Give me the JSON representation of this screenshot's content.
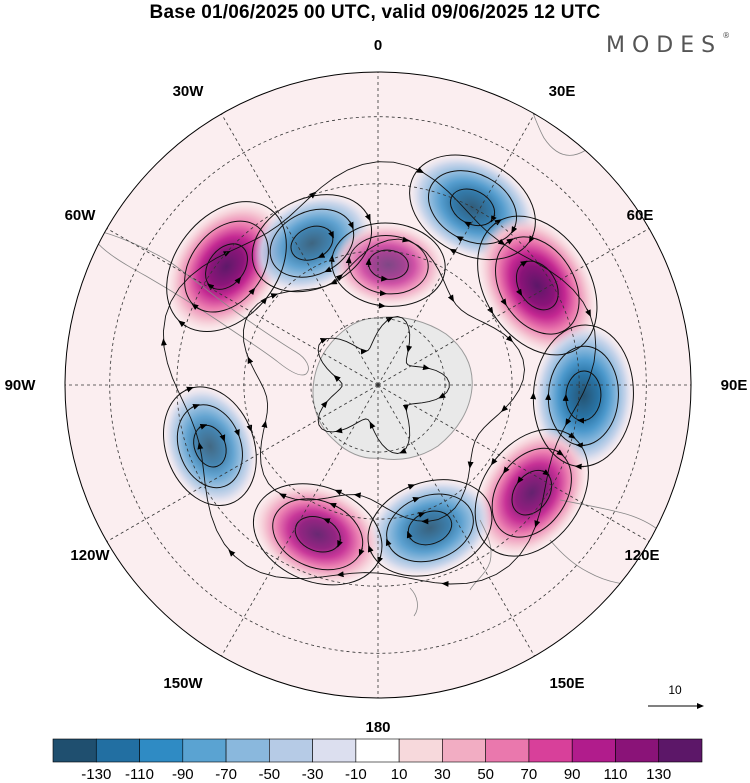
{
  "title": "Base 01/06/2025 00 UTC, valid 09/06/2025 12 UTC",
  "logo": "MODES",
  "logo_mark": "®",
  "longitude_labels": [
    "0",
    "30E",
    "60E",
    "90E",
    "120E",
    "150E",
    "180",
    "150W",
    "120W",
    "90W",
    "60W",
    "30W"
  ],
  "reference_vector_label": "10",
  "colorbar": {
    "labels": [
      "-130",
      "-110",
      "-90",
      "-70",
      "-50",
      "-30",
      "-10",
      "10",
      "30",
      "50",
      "70",
      "90",
      "110",
      "130"
    ],
    "colors": [
      "#1f4f6f",
      "#226fa2",
      "#2f8bc4",
      "#5aa3d2",
      "#8ab8dd",
      "#b6cbe6",
      "#dcdfef",
      "#ffffff",
      "#f7d9dc",
      "#f2adc3",
      "#ea78ad",
      "#d8409a",
      "#b11c8c",
      "#8a1378",
      "#5c1768"
    ]
  },
  "anomaly_centres": [
    {
      "lon": 28,
      "lat": -45,
      "value": -95
    },
    {
      "lon": 58,
      "lat": -48,
      "value": 125
    },
    {
      "lon": 93,
      "lat": -44,
      "value": -110
    },
    {
      "lon": 125,
      "lat": -48,
      "value": 105
    },
    {
      "lon": 160,
      "lat": -56,
      "value": -85
    },
    {
      "lon": -158,
      "lat": -54,
      "value": 95
    },
    {
      "lon": -110,
      "lat": -50,
      "value": -75
    },
    {
      "lon": -52,
      "lat": -47,
      "value": 115
    },
    {
      "lon": -25,
      "lat": -55,
      "value": -80
    },
    {
      "lon": 5,
      "lat": -63,
      "value": 60
    }
  ]
}
